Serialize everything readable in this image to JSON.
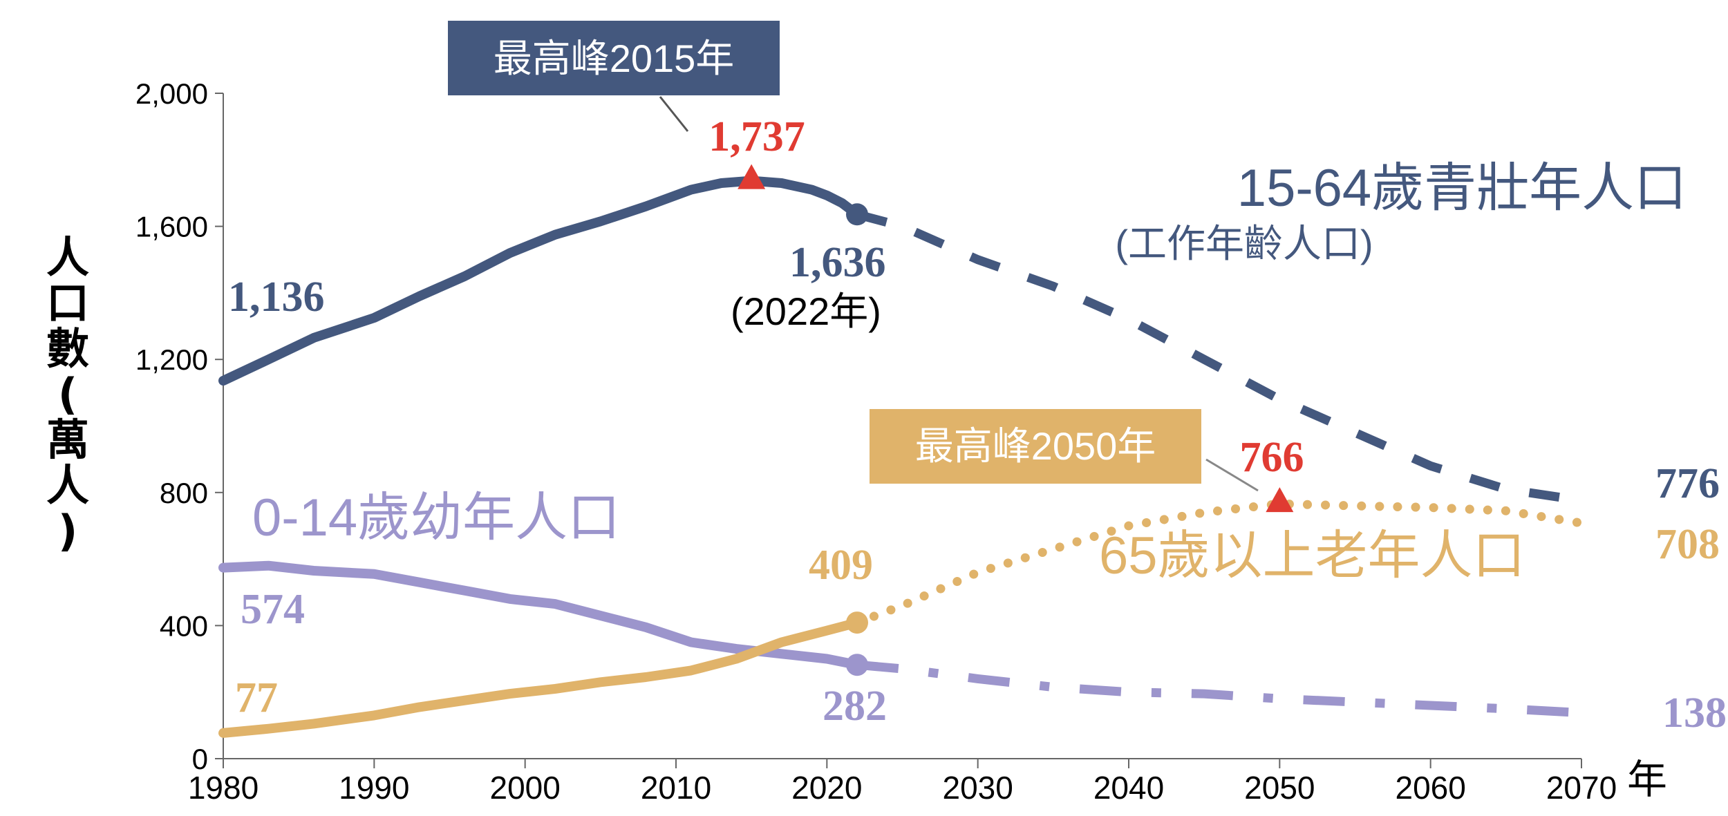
{
  "chart_data": {
    "type": "line",
    "ylabel": "人口數(萬人)",
    "xlabel": "年",
    "xlim": [
      1980,
      2070
    ],
    "ylim": [
      0,
      2000
    ],
    "x_ticks": [
      1980,
      1990,
      2000,
      2010,
      2020,
      2030,
      2040,
      2050,
      2060,
      2070
    ],
    "y_ticks": [
      0,
      400,
      800,
      1200,
      1600,
      2000
    ],
    "y_tick_labels": [
      "0",
      "400",
      "800",
      "1,200",
      "1,600",
      "2,000"
    ],
    "series": [
      {
        "name": "15-64歲青壯年人口",
        "subtitle": "(工作年齡人口)",
        "color": "#44587e",
        "x": [
          1980,
          1983,
          1986,
          1990,
          1993,
          1996,
          1999,
          2002,
          2005,
          2008,
          2011,
          2013,
          2015,
          2017,
          2019,
          2020,
          2021,
          2022,
          2025,
          2030,
          2035,
          2040,
          2045,
          2050,
          2055,
          2060,
          2065,
          2070
        ],
        "values": [
          1136,
          1200,
          1265,
          1325,
          1390,
          1450,
          1520,
          1575,
          1615,
          1660,
          1710,
          1730,
          1737,
          1730,
          1710,
          1693,
          1670,
          1636,
          1600,
          1500,
          1420,
          1320,
          1200,
          1080,
          980,
          880,
          810,
          776
        ],
        "projection_from": 2022
      },
      {
        "name": "0-14歲幼年人口",
        "color": "#9c95cc",
        "x": [
          1980,
          1983,
          1986,
          1990,
          1993,
          1996,
          1999,
          2002,
          2005,
          2008,
          2011,
          2014,
          2017,
          2020,
          2022,
          2025,
          2030,
          2035,
          2040,
          2045,
          2050,
          2055,
          2060,
          2065,
          2070
        ],
        "values": [
          574,
          580,
          565,
          555,
          530,
          505,
          480,
          465,
          430,
          395,
          350,
          330,
          315,
          300,
          282,
          270,
          240,
          215,
          200,
          195,
          180,
          170,
          160,
          150,
          138
        ],
        "projection_from": 2022
      },
      {
        "name": "65歲以上老年人口",
        "color": "#e0b36a",
        "x": [
          1980,
          1983,
          1986,
          1990,
          1993,
          1996,
          1999,
          2002,
          2005,
          2008,
          2011,
          2014,
          2017,
          2020,
          2022,
          2025,
          2030,
          2035,
          2040,
          2045,
          2050,
          2055,
          2060,
          2065,
          2070
        ],
        "values": [
          77,
          90,
          105,
          130,
          155,
          175,
          195,
          210,
          230,
          245,
          265,
          300,
          350,
          385,
          409,
          460,
          560,
          630,
          700,
          740,
          766,
          760,
          755,
          745,
          708
        ],
        "projection_from": 2022
      }
    ],
    "annotations": [
      {
        "text": "最高峰2015年",
        "x": 2015,
        "value": 1737,
        "value_label": "1,737",
        "box_color": "#44587e"
      },
      {
        "text": "最高峰2050年",
        "x": 2050,
        "value": 766,
        "value_label": "766",
        "box_color": "#e0b36a"
      }
    ],
    "labels": {
      "work_start": "1,136",
      "work_2022": "1,636",
      "year_2022": "(2022年)",
      "work_end": "776",
      "child_start": "574",
      "child_2022": "282",
      "child_end": "138",
      "old_start": "77",
      "old_2022": "409",
      "old_end": "708"
    },
    "peak_color": "#e03b32",
    "ylabel_chars": [
      "人",
      "口",
      "數",
      "(",
      "萬",
      "人",
      ")"
    ]
  }
}
